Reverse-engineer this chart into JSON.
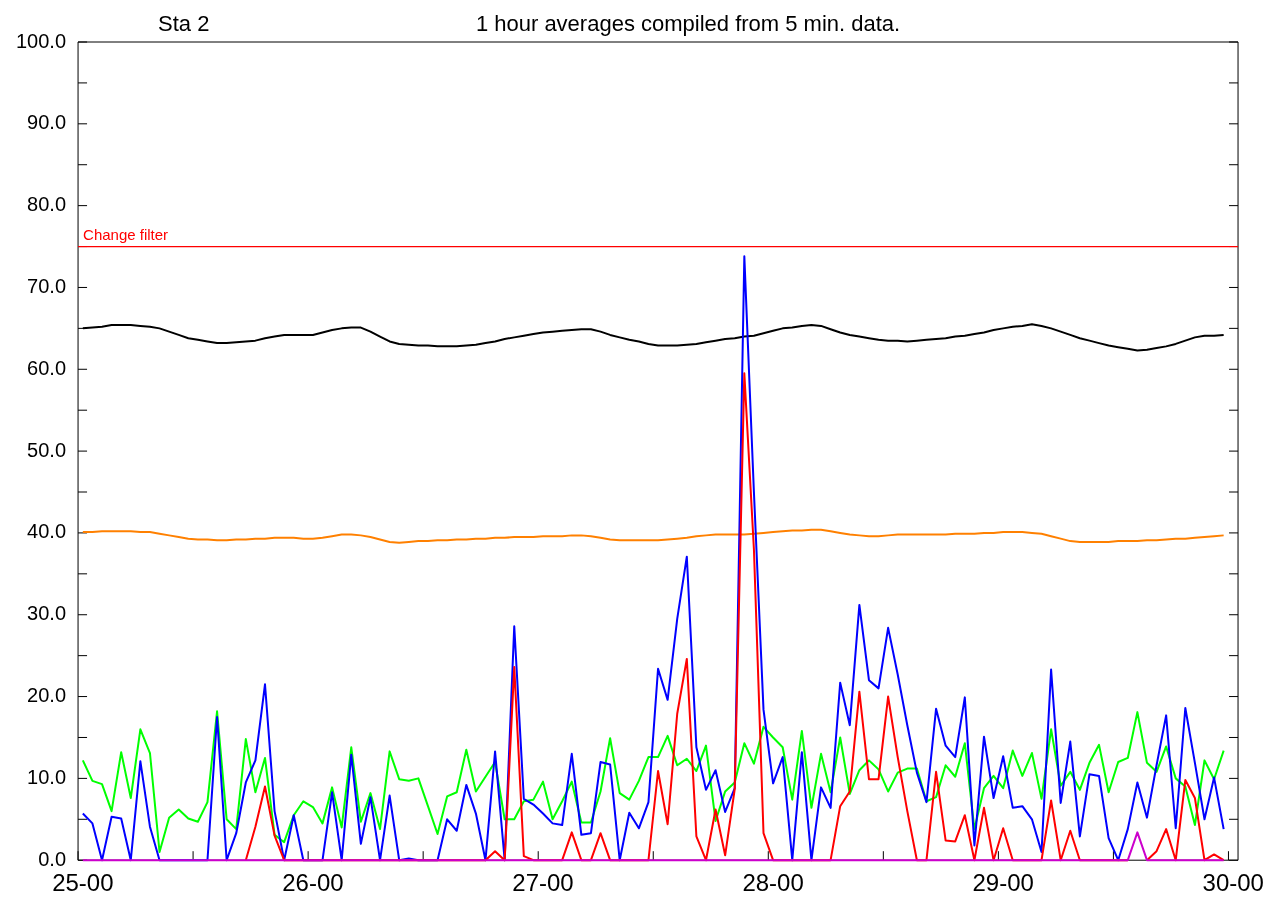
{
  "chart_data": {
    "type": "line",
    "title": "Sta 2",
    "subtitle": "1 hour averages compiled from 5 min. data.",
    "categories": [
      "25-00",
      null,
      null,
      null,
      null,
      null,
      null,
      null,
      null,
      null,
      null,
      null,
      null,
      null,
      null,
      null,
      null,
      null,
      null,
      null,
      null,
      null,
      null,
      null,
      "26-00",
      null,
      null,
      null,
      null,
      null,
      null,
      null,
      null,
      null,
      null,
      null,
      null,
      null,
      null,
      null,
      null,
      null,
      null,
      null,
      null,
      null,
      null,
      null,
      "27-00",
      null,
      null,
      null,
      null,
      null,
      null,
      null,
      null,
      null,
      null,
      null,
      null,
      null,
      null,
      null,
      null,
      null,
      null,
      null,
      null,
      null,
      null,
      null,
      "28-00",
      null,
      null,
      null,
      null,
      null,
      null,
      null,
      null,
      null,
      null,
      null,
      null,
      null,
      null,
      null,
      null,
      null,
      null,
      null,
      null,
      null,
      null,
      null,
      "29-00",
      null,
      null,
      null,
      null,
      null,
      null,
      null,
      null,
      null,
      null,
      null,
      null,
      null,
      null,
      null,
      null,
      null,
      null,
      null,
      null,
      null,
      null,
      null,
      "30-00"
    ],
    "series": [
      {
        "color": "#000000",
        "values": [
          65.0,
          65.1,
          65.2,
          65.4,
          65.4,
          65.4,
          65.3,
          65.2,
          65.0,
          64.6,
          64.2,
          63.8,
          63.6,
          63.4,
          63.2,
          63.2,
          63.3,
          63.4,
          63.5,
          63.8,
          64.0,
          64.2,
          64.2,
          64.2,
          64.2,
          64.5,
          64.8,
          65.0,
          65.1,
          65.1,
          64.6,
          64.0,
          63.4,
          63.1,
          63.0,
          62.9,
          62.9,
          62.8,
          62.8,
          62.8,
          62.9,
          63.0,
          63.2,
          63.4,
          63.7,
          63.9,
          64.1,
          64.3,
          64.5,
          64.6,
          64.7,
          64.8,
          64.9,
          64.9,
          64.6,
          64.2,
          63.9,
          63.6,
          63.4,
          63.1,
          62.9,
          62.9,
          62.9,
          63.0,
          63.1,
          63.3,
          63.5,
          63.7,
          63.8,
          64.0,
          64.1,
          64.4,
          64.7,
          65.0,
          65.1,
          65.3,
          65.4,
          65.3,
          64.9,
          64.5,
          64.2,
          64.0,
          63.8,
          63.6,
          63.5,
          63.5,
          63.4,
          63.5,
          63.6,
          63.7,
          63.8,
          64.0,
          64.1,
          64.3,
          64.5,
          64.8,
          65.0,
          65.2,
          65.3,
          65.5,
          65.3,
          65.0,
          64.6,
          64.2,
          63.8,
          63.5,
          63.2,
          62.9,
          62.7,
          62.5,
          62.3,
          62.4,
          62.6,
          62.8,
          63.1,
          63.5,
          63.9,
          64.1,
          64.1,
          64.2,
          null
        ]
      },
      {
        "color": "#ff8000",
        "values": [
          40.1,
          40.1,
          40.2,
          40.2,
          40.2,
          40.2,
          40.1,
          40.1,
          39.9,
          39.7,
          39.5,
          39.3,
          39.2,
          39.2,
          39.1,
          39.1,
          39.2,
          39.2,
          39.3,
          39.3,
          39.4,
          39.4,
          39.4,
          39.3,
          39.3,
          39.4,
          39.6,
          39.8,
          39.8,
          39.7,
          39.5,
          39.2,
          38.9,
          38.8,
          38.9,
          39.0,
          39.0,
          39.1,
          39.1,
          39.2,
          39.2,
          39.3,
          39.3,
          39.4,
          39.4,
          39.5,
          39.5,
          39.5,
          39.6,
          39.6,
          39.6,
          39.7,
          39.7,
          39.6,
          39.4,
          39.2,
          39.1,
          39.1,
          39.1,
          39.1,
          39.1,
          39.2,
          39.3,
          39.4,
          39.6,
          39.7,
          39.8,
          39.8,
          39.8,
          39.8,
          39.9,
          40.0,
          40.1,
          40.2,
          40.3,
          40.3,
          40.4,
          40.4,
          40.2,
          40.0,
          39.8,
          39.7,
          39.6,
          39.6,
          39.7,
          39.8,
          39.8,
          39.8,
          39.8,
          39.8,
          39.8,
          39.9,
          39.9,
          39.9,
          40.0,
          40.0,
          40.1,
          40.1,
          40.1,
          40.0,
          39.9,
          39.6,
          39.3,
          39.0,
          38.9,
          38.9,
          38.9,
          38.9,
          39.0,
          39.0,
          39.0,
          39.1,
          39.1,
          39.2,
          39.3,
          39.3,
          39.4,
          39.5,
          39.6,
          39.7,
          null
        ]
      },
      {
        "color": "#00ff00",
        "values": [
          12.2,
          9.7,
          9.3,
          6.0,
          13.2,
          7.6,
          16.0,
          13.1,
          1.0,
          5.2,
          6.2,
          5.1,
          4.7,
          7.1,
          18.2,
          5.0,
          3.8,
          14.8,
          8.3,
          12.5,
          3.1,
          2.2,
          5.5,
          7.2,
          6.5,
          4.5,
          8.9,
          4.0,
          13.8,
          4.7,
          8.2,
          3.8,
          13.3,
          9.9,
          9.7,
          10.0,
          6.6,
          3.2,
          7.8,
          8.3,
          13.5,
          8.4,
          10.2,
          12.0,
          5.0,
          5.0,
          7.2,
          7.4,
          9.6,
          5.0,
          7.2,
          9.6,
          4.6,
          4.6,
          8.4,
          14.9,
          8.2,
          7.4,
          9.7,
          12.6,
          12.6,
          15.2,
          11.6,
          12.4,
          10.9,
          14.0,
          4.8,
          8.4,
          9.5,
          14.3,
          11.8,
          16.3,
          15.0,
          13.8,
          7.4,
          15.8,
          6.4,
          13.0,
          8.3,
          15.0,
          8.1,
          11.0,
          12.2,
          11.1,
          8.4,
          10.7,
          11.2,
          11.2,
          7.2,
          7.7,
          11.6,
          10.2,
          14.3,
          3.8,
          8.8,
          10.3,
          8.8,
          13.4,
          10.3,
          13.1,
          7.5,
          16.0,
          9.1,
          10.8,
          8.6,
          11.9,
          14.1,
          8.3,
          12.0,
          12.5,
          18.1,
          11.9,
          10.8,
          13.9,
          10.0,
          9.0,
          4.3,
          12.2,
          9.9,
          13.4,
          null
        ]
      },
      {
        "color": "#0000ff",
        "values": [
          5.7,
          4.5,
          0,
          5.3,
          5.1,
          0,
          12.1,
          4.1,
          0,
          0,
          0,
          0,
          0,
          0,
          17.5,
          0,
          3.3,
          9.5,
          12.2,
          21.5,
          6.0,
          0,
          5.5,
          0,
          0,
          0,
          8.3,
          0,
          12.9,
          2.0,
          7.7,
          0,
          7.9,
          0,
          0.2,
          0,
          0,
          0,
          5.0,
          3.6,
          9.2,
          5.7,
          0,
          13.3,
          0,
          28.6,
          7.5,
          6.8,
          5.7,
          4.5,
          4.3,
          13.0,
          3.1,
          3.3,
          12.0,
          11.7,
          0,
          5.8,
          3.9,
          7.1,
          23.4,
          19.6,
          29.5,
          37.1,
          13.8,
          8.6,
          11.0,
          5.9,
          8.8,
          73.8,
          45,
          18.4,
          9.4,
          12.6,
          0,
          13.2,
          0,
          8.9,
          6.4,
          21.7,
          16.5,
          31.2,
          22.0,
          21.0,
          28.4,
          22.7,
          16.5,
          10.7,
          7.1,
          18.5,
          14.0,
          12.6,
          19.9,
          1.8,
          15.1,
          7.6,
          12.7,
          6.4,
          6.6,
          5.0,
          1.0,
          23.3,
          7.0,
          14.5,
          2.9,
          10.5,
          10.3,
          2.7,
          0,
          3.8,
          9.5,
          5.2,
          11.6,
          17.7,
          3.9,
          18.6,
          11.9,
          5.0,
          10.1,
          3.8,
          null
        ]
      },
      {
        "color": "#ff0000",
        "values": [
          null,
          null,
          null,
          null,
          null,
          null,
          null,
          null,
          null,
          null,
          null,
          null,
          null,
          null,
          null,
          null,
          null,
          0,
          4.1,
          9.0,
          3.0,
          0,
          0,
          0,
          0,
          0,
          0,
          0,
          0,
          0,
          0,
          0,
          0,
          0,
          0,
          0,
          0,
          0,
          0,
          0,
          0,
          0,
          0,
          1.1,
          0,
          23.6,
          0.5,
          0,
          0,
          0,
          0,
          3.4,
          0,
          0,
          3.3,
          0,
          0,
          0,
          0,
          0,
          10.9,
          4.4,
          17.9,
          24.6,
          2.9,
          0,
          6.2,
          0.6,
          8.7,
          59.5,
          38,
          3.3,
          0,
          0,
          0,
          0,
          0,
          0,
          0,
          6.6,
          8.4,
          20.6,
          9.9,
          9.9,
          20.0,
          12.6,
          6.0,
          0,
          0,
          10.8,
          2.4,
          2.3,
          5.5,
          0,
          6.4,
          0,
          3.9,
          0,
          0,
          0,
          0,
          7.3,
          0,
          3.6,
          0,
          0,
          0,
          0,
          0,
          0,
          null,
          0,
          1.1,
          3.8,
          0,
          9.8,
          7.6,
          0,
          0.7,
          0,
          null
        ]
      },
      {
        "color": "#cc00cc",
        "values": [
          0,
          0,
          0,
          0,
          0,
          0,
          0,
          0,
          0,
          0,
          0,
          0,
          0,
          0,
          0,
          0,
          0,
          0,
          0,
          0,
          0,
          0,
          0,
          0,
          0,
          0,
          0,
          0,
          0,
          0,
          0,
          0,
          0,
          0,
          0,
          0,
          0,
          0,
          0,
          0,
          0,
          0,
          0,
          0,
          0,
          0,
          0,
          0,
          0,
          0,
          0,
          0,
          0,
          0,
          0,
          0,
          0,
          0,
          0,
          0,
          0,
          0,
          0,
          0,
          0,
          0,
          0,
          0,
          0,
          0,
          0,
          0,
          0,
          0,
          0,
          0,
          0,
          0,
          0,
          0,
          0,
          0,
          0,
          0,
          0,
          0,
          0,
          0,
          0,
          0,
          0,
          0,
          0,
          0,
          0,
          0,
          0,
          0,
          0,
          0,
          0,
          0,
          0,
          0,
          0,
          0,
          0,
          0,
          0,
          0,
          3.4,
          0,
          0,
          0,
          0,
          0,
          0,
          0,
          0,
          0,
          null
        ]
      }
    ],
    "ylim": [
      0,
      100
    ],
    "yticks": [
      {
        "value": 0,
        "label": "0.0"
      },
      {
        "value": 5,
        "label": null
      },
      {
        "value": 10,
        "label": "10.0"
      },
      {
        "value": 15,
        "label": null
      },
      {
        "value": 20,
        "label": "20.0"
      },
      {
        "value": 25,
        "label": null
      },
      {
        "value": 30,
        "label": "30.0"
      },
      {
        "value": 35,
        "label": null
      },
      {
        "value": 40,
        "label": "40.0"
      },
      {
        "value": 45,
        "label": null
      },
      {
        "value": 50,
        "label": "50.0"
      },
      {
        "value": 55,
        "label": null
      },
      {
        "value": 60,
        "label": "60.0"
      },
      {
        "value": 65,
        "label": null
      },
      {
        "value": 70,
        "label": "70.0"
      },
      {
        "value": 75,
        "label": null
      },
      {
        "value": 80,
        "label": "80.0"
      },
      {
        "value": 85,
        "label": null
      },
      {
        "value": 90,
        "label": "90.0"
      },
      {
        "value": 95,
        "label": null
      },
      {
        "value": 100,
        "label": "100.0"
      }
    ],
    "ref_lines": [
      {
        "axis": "y",
        "value": 75,
        "label": "Change filter",
        "color": "#ff0000"
      }
    ],
    "grid": false,
    "legend": false,
    "marker": "none"
  }
}
